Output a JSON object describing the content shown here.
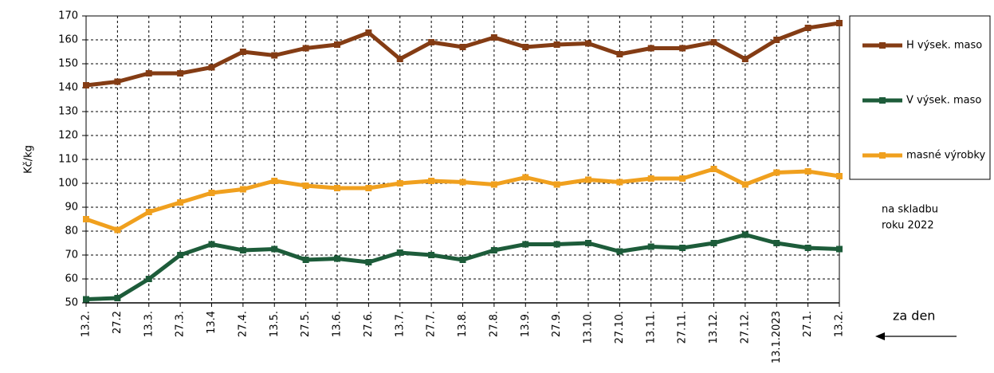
{
  "chart_data": {
    "type": "line",
    "y_label": "Kč/kg",
    "categories": [
      "13.2.",
      "27.2",
      "13.3.",
      "27.3.",
      "13.4",
      "27.4.",
      "13.5.",
      "27.5.",
      "13.6.",
      "27.6.",
      "13.7.",
      "27.7.",
      "13.8.",
      "27.8.",
      "13.9.",
      "27.9.",
      "13.10.",
      "27.10.",
      "13.11.",
      "27.11.",
      "13.12.",
      "27.12.",
      "13.1.2023",
      "27.1.",
      "13.2."
    ],
    "series": [
      {
        "name": "H výsek. maso",
        "color": "#843c14",
        "values": [
          141,
          142.5,
          146,
          146,
          148.5,
          155,
          153.5,
          156.5,
          158,
          163,
          152,
          159,
          157,
          161,
          157,
          158,
          158.5,
          154,
          156.5,
          156.5,
          159,
          152,
          160,
          165,
          167
        ]
      },
      {
        "name": "V výsek. maso",
        "color": "#1d5c3a",
        "values": [
          51.5,
          52,
          60,
          70,
          74.5,
          72,
          72.5,
          68,
          68.5,
          67,
          71,
          70,
          68,
          72,
          74.5,
          74.5,
          75,
          71.5,
          73.5,
          73,
          75,
          78.5,
          75,
          73,
          72.5
        ]
      },
      {
        "name": "masné výrobky",
        "color": "#f0a01e",
        "values": [
          85,
          80.5,
          88,
          92,
          96,
          97.5,
          101,
          99,
          98,
          98,
          100,
          101,
          100.5,
          99.5,
          102.5,
          99.5,
          101.5,
          100.5,
          102,
          102,
          106,
          99.5,
          104.5,
          105,
          103
        ]
      }
    ],
    "ylim": [
      50,
      170
    ],
    "yticks": [
      50,
      60,
      70,
      80,
      90,
      100,
      110,
      120,
      130,
      140,
      150,
      160,
      170
    ],
    "grid": true,
    "annotations": [
      "na skladbu",
      "roku 2022",
      "za den"
    ]
  }
}
